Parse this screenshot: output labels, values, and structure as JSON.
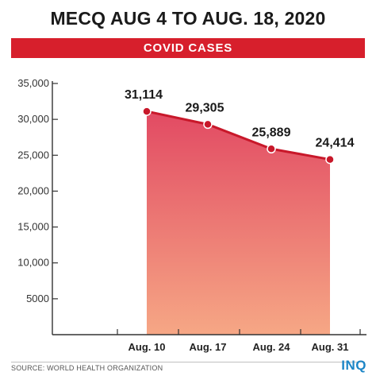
{
  "title": "MECQ AUG 4 TO AUG. 18, 2020",
  "banner": "COVID CASES",
  "source": "SOURCE: WORLD HEALTH ORGANIZATION",
  "logo": "INQ",
  "colors": {
    "accent": "#d71f2c",
    "line": "#c8182a",
    "area_top": "#e24a63",
    "area_bottom": "#f6a785",
    "logo": "#1c86c7"
  },
  "chart_data": {
    "type": "area",
    "categories": [
      "Aug. 10",
      "Aug. 17",
      "Aug. 24",
      "Aug. 31"
    ],
    "values": [
      31114,
      29305,
      25889,
      24414
    ],
    "data_labels": [
      "31,114",
      "29,305",
      "25,889",
      "24,414"
    ],
    "ylim": [
      0,
      35000
    ],
    "y_ticks": [
      5000,
      10000,
      15000,
      20000,
      25000,
      30000,
      35000
    ],
    "y_tick_labels": [
      "5000",
      "10,000",
      "15,000",
      "20,000",
      "25,000",
      "30,000",
      "35,000"
    ],
    "grid": false,
    "legend": "none"
  }
}
